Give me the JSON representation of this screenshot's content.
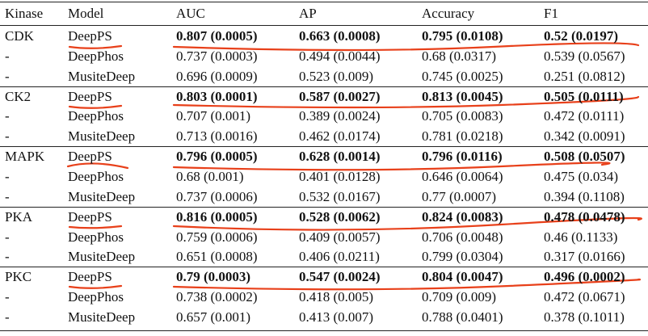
{
  "table": {
    "header": [
      "Kinase",
      "Model",
      "AUC",
      "AP",
      "Accuracy",
      "F1"
    ],
    "rows": [
      [
        "CDK",
        "DeepPS",
        "0.807 (0.0005)",
        "0.663 (0.0008)",
        "0.795 (0.0108)",
        "0.52 (0.0197)"
      ],
      [
        "-",
        "DeepPhos",
        "0.737 (0.0003)",
        "0.494 (0.0044)",
        "0.68 (0.0317)",
        "0.539 (0.0567)"
      ],
      [
        "-",
        "MusiteDeep",
        "0.696 (0.0009)",
        "0.523 (0.009)",
        "0.745 (0.0025)",
        "0.251 (0.0812)"
      ],
      [
        "CK2",
        "DeepPS",
        "0.803 (0.0001)",
        "0.587 (0.0027)",
        "0.813 (0.0045)",
        "0.505 (0.0111)"
      ],
      [
        "-",
        "DeepPhos",
        "0.707 (0.001)",
        "0.389 (0.0024)",
        "0.705 (0.0083)",
        "0.472 (0.0111)"
      ],
      [
        "-",
        "MusiteDeep",
        "0.713 (0.0016)",
        "0.462 (0.0174)",
        "0.781 (0.0218)",
        "0.342 (0.0091)"
      ],
      [
        "MAPK",
        "DeepPS",
        "0.796 (0.0005)",
        "0.628 (0.0014)",
        "0.796 (0.0116)",
        "0.508 (0.0507)"
      ],
      [
        "-",
        "DeepPhos",
        "0.68 (0.001)",
        "0.401 (0.0128)",
        "0.646 (0.0064)",
        "0.475 (0.034)"
      ],
      [
        "-",
        "MusiteDeep",
        "0.737 (0.0006)",
        "0.532 (0.0167)",
        "0.77 (0.0007)",
        "0.394 (0.1108)"
      ],
      [
        "PKA",
        "DeepPS",
        "0.816 (0.0005)",
        "0.528 (0.0062)",
        "0.824 (0.0083)",
        "0.478 (0.0478)"
      ],
      [
        "-",
        "DeepPhos",
        "0.759 (0.0006)",
        "0.409 (0.0057)",
        "0.706 (0.0048)",
        "0.46 (0.1133)"
      ],
      [
        "-",
        "MusiteDeep",
        "0.651 (0.0008)",
        "0.406 (0.0211)",
        "0.799 (0.0304)",
        "0.317 (0.0166)"
      ],
      [
        "PKC",
        "DeepPS",
        "0.79 (0.0003)",
        "0.547 (0.0024)",
        "0.804 (0.0047)",
        "0.496 (0.0002)"
      ],
      [
        "-",
        "DeepPhos",
        "0.738 (0.0002)",
        "0.418 (0.005)",
        "0.709 (0.009)",
        "0.472 (0.0671)"
      ],
      [
        "-",
        "MusiteDeep",
        "0.657 (0.001)",
        "0.413 (0.007)",
        "0.788 (0.0401)",
        "0.378 (0.1011)"
      ]
    ]
  }
}
